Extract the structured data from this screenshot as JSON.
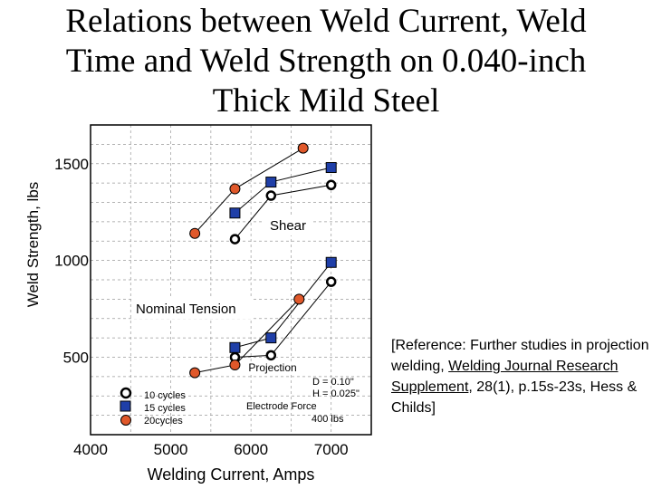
{
  "title_lines": [
    "Relations between Weld Current, Weld",
    "Time and Weld Strength on 0.040-inch",
    "Thick Mild Steel"
  ],
  "reference": {
    "pre": "[Reference:  Further studies in projection welding, ",
    "underlined": "Welding Journal Research Supplement",
    "post": ", 28(1), p.15s-23s, Hess & Childs]"
  },
  "chart_data": {
    "type": "line",
    "title": "Relations between Weld Current, Weld Time and Weld Strength on 0.040-inch Thick Mild Steel",
    "xlabel": "Welding Current, Amps",
    "ylabel": "Weld Strength, lbs",
    "x_ticks": [
      4000,
      5000,
      6000,
      7000
    ],
    "y_ticks": [
      500,
      1000,
      1500
    ],
    "xlim": [
      4000,
      7500
    ],
    "ylim": [
      100,
      1700
    ],
    "grid": true,
    "legend_position": "bottom-left",
    "colors": {
      "10 cycles": "#ffffff",
      "15 cycles": "#1f3fa8",
      "20cycles": "#e0582a"
    },
    "series": [
      {
        "name": "10 cycles",
        "marker": "circle",
        "group": "Shear",
        "points": [
          [
            5800,
            1110
          ],
          [
            6250,
            1335
          ],
          [
            7000,
            1390
          ]
        ]
      },
      {
        "name": "15 cycles",
        "marker": "square",
        "group": "Shear",
        "points": [
          [
            5800,
            1245
          ],
          [
            6250,
            1405
          ],
          [
            7000,
            1480
          ]
        ]
      },
      {
        "name": "20cycles",
        "marker": "dot",
        "group": "Shear",
        "points": [
          [
            5300,
            1140
          ],
          [
            5800,
            1370
          ],
          [
            6650,
            1580
          ]
        ]
      },
      {
        "name": "10 cycles",
        "marker": "circle",
        "group": "Nominal Tension",
        "points": [
          [
            5800,
            500
          ],
          [
            6250,
            510
          ],
          [
            7000,
            890
          ]
        ]
      },
      {
        "name": "15 cycles",
        "marker": "square",
        "group": "Nominal Tension",
        "points": [
          [
            5800,
            550
          ],
          [
            6250,
            600
          ],
          [
            7000,
            990
          ]
        ]
      },
      {
        "name": "20cycles",
        "marker": "dot",
        "group": "Nominal Tension",
        "points": [
          [
            5300,
            420
          ],
          [
            5800,
            460
          ],
          [
            6600,
            800
          ]
        ]
      }
    ],
    "annotations": {
      "shear": "Shear",
      "tension": "Nominal Tension",
      "projection": "Projection",
      "d": "D = 0.10\"",
      "h": "H = 0.025\"",
      "force_label": "Electrode Force",
      "force_value": "400 lbs"
    },
    "legend": [
      "10 cycles",
      "15 cycles",
      "20cycles"
    ]
  }
}
